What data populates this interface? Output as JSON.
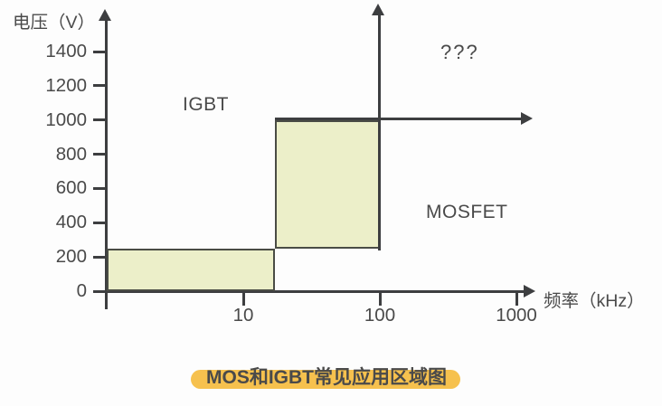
{
  "chart_data": {
    "type": "area",
    "title": "MOS和IGBT常见应用区域图",
    "xlabel": "频率（kHz）",
    "ylabel": "电压（V）",
    "x_scale": "log",
    "x_ticks": [
      10,
      100,
      1000
    ],
    "y_ticks": [
      0,
      200,
      400,
      600,
      800,
      1000,
      1200,
      1400
    ],
    "ylim": [
      0,
      1500
    ],
    "xlim_khz": [
      1,
      1300
    ],
    "grid": false,
    "legend": "none",
    "regions": [
      {
        "name": "low-voltage-band",
        "f_khz": [
          1,
          17
        ],
        "v": [
          0,
          250
        ]
      },
      {
        "name": "mid-band",
        "f_khz": [
          17,
          100
        ],
        "v": [
          250,
          1000
        ]
      }
    ],
    "annotations": [
      {
        "text": "IGBT",
        "area": "upper-left"
      },
      {
        "text": "MOSFET",
        "area": "right-of-mid-band"
      },
      {
        "text": "???",
        "area": "upper-right"
      }
    ],
    "reference_arrows": [
      {
        "type": "vertical",
        "at_f_khz": 100,
        "from_v": 250,
        "direction": "up"
      },
      {
        "type": "horizontal",
        "at_v": 1000,
        "from_f_khz": 17,
        "direction": "right"
      }
    ]
  },
  "colors": {
    "region_fill": "#ecefc9",
    "region_border": "#4a4c45",
    "axis": "#3d3e40",
    "text": "#4a4a4a",
    "caption_highlight": "#f6c14e",
    "background": "#fdfdfd"
  }
}
